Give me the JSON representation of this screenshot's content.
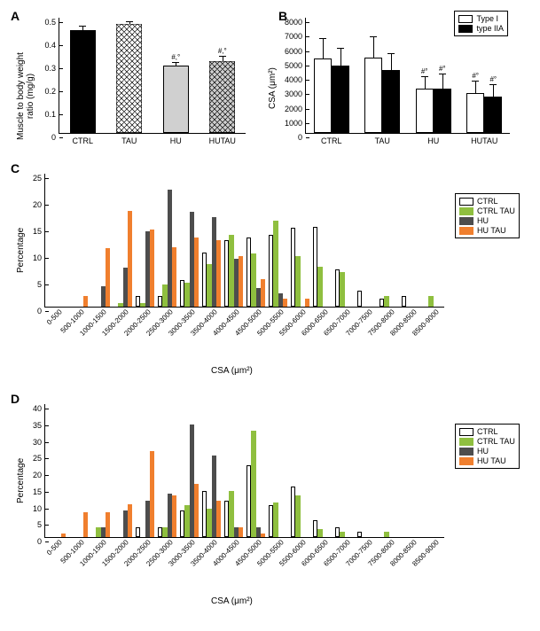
{
  "panelA": {
    "label": "A",
    "type": "bar",
    "ylabel": "Muscle to body weight\nratio (mg/g)",
    "ylim": [
      0,
      0.5
    ],
    "ytick_step": 0.1,
    "yticks": [
      "0",
      "0.1",
      "0.2",
      "0.3",
      "0.4",
      "0.5"
    ],
    "categories": [
      "CTRL",
      "TAU",
      "HU",
      "HUTAU"
    ],
    "values": [
      0.445,
      0.472,
      0.292,
      0.31
    ],
    "errors": [
      0.018,
      0.008,
      0.012,
      0.02
    ],
    "fills": [
      "#000000",
      "hatch-white",
      "#d0d0d0",
      "hatch-gray"
    ],
    "annotations": [
      "",
      "",
      "#,°",
      "#,°"
    ],
    "bar_width": 0.55,
    "label_fontsize": 10
  },
  "panelB": {
    "label": "B",
    "type": "grouped-bar",
    "ylabel": "CSA (μm²)",
    "ylim": [
      0,
      8000
    ],
    "ytick_step": 1000,
    "yticks": [
      "0",
      "1000",
      "2000",
      "3000",
      "4000",
      "5000",
      "6000",
      "7000",
      "8000"
    ],
    "categories": [
      "CTRL",
      "TAU",
      "HU",
      "HUTAU"
    ],
    "series": [
      {
        "name": "Type I",
        "fill": "#ffffff",
        "values": [
          5200,
          5250,
          3050,
          2800
        ],
        "errors": [
          1350,
          1400,
          850,
          800
        ],
        "annot": [
          "",
          "",
          "#°",
          "#°"
        ]
      },
      {
        "name": "type IIA",
        "fill": "#000000",
        "values": [
          4650,
          4400,
          3100,
          2500
        ],
        "errors": [
          1200,
          1100,
          950,
          800
        ],
        "annot": [
          "",
          "",
          "#°",
          "#°"
        ]
      }
    ],
    "bar_width": 0.35,
    "legend_pos": "top-right"
  },
  "hist_categories": [
    "0-500",
    "500-1000",
    "1000-1500",
    "1500-2000",
    "2000-2500",
    "2500-3000",
    "3000-3500",
    "3500-4000",
    "4000-4500",
    "4500-5000",
    "5000-5500",
    "5500-6000",
    "6000-6500",
    "6500-7000",
    "7000-7500",
    "7500-8000",
    "8000-8500",
    "8500-9000"
  ],
  "hist_series_meta": [
    {
      "name": "CTRL",
      "fill": "#ffffff",
      "border": "#000000"
    },
    {
      "name": "CTRL TAU",
      "fill": "#8fbf3f",
      "border": "#8fbf3f"
    },
    {
      "name": "HU",
      "fill": "#4d4d4d",
      "border": "#4d4d4d"
    },
    {
      "name": "HU TAU",
      "fill": "#f07f2e",
      "border": "#f07f2e"
    }
  ],
  "panelC": {
    "label": "C",
    "type": "grouped-bar-hist",
    "ylabel": "Percentage",
    "xlabel": "CSA (μm²)",
    "ylim": [
      0,
      25
    ],
    "ytick_step": 5,
    "yticks": [
      "0",
      "5",
      "10",
      "15",
      "20",
      "25"
    ],
    "series": [
      {
        "values": [
          0,
          0,
          0,
          0,
          2,
          2,
          5,
          10.2,
          12.5,
          13,
          13.5,
          14.8,
          15,
          7,
          3,
          1.5,
          2,
          0
        ]
      },
      {
        "values": [
          0,
          0,
          0,
          0.7,
          0.7,
          4.2,
          4.5,
          8,
          13.5,
          10,
          16.2,
          9.5,
          7.5,
          6.5,
          0,
          2,
          0,
          2
        ]
      },
      {
        "values": [
          0,
          0,
          3.8,
          7.3,
          14.2,
          22,
          17.8,
          16.8,
          9,
          3.5,
          2.5,
          0,
          0,
          0,
          0,
          0,
          0,
          0
        ]
      },
      {
        "values": [
          0,
          2,
          11,
          18,
          14.5,
          11.2,
          13,
          12.5,
          9.5,
          5.2,
          1.5,
          1.5,
          0,
          0,
          0,
          0,
          0,
          0
        ]
      }
    ]
  },
  "panelD": {
    "label": "D",
    "type": "grouped-bar-hist",
    "ylabel": "Percentage",
    "xlabel": "CSA (μm²)",
    "ylim": [
      0,
      40
    ],
    "ytick_step": 5,
    "yticks": [
      "0",
      "5",
      "10",
      "15",
      "20",
      "25",
      "30",
      "35",
      "40"
    ],
    "series": [
      {
        "values": [
          0,
          0,
          0,
          0,
          3,
          3,
          8,
          14,
          11,
          21.5,
          9.5,
          15.2,
          5,
          3,
          1.5,
          0,
          0,
          0
        ]
      },
      {
        "values": [
          0,
          0,
          3,
          0,
          0,
          3,
          9.5,
          8.5,
          13.8,
          32,
          10.5,
          12.5,
          2.5,
          1.5,
          0,
          1.5,
          0,
          0
        ]
      },
      {
        "values": [
          0,
          0,
          3,
          8,
          11,
          13,
          34,
          24.5,
          3,
          3,
          0,
          0,
          0,
          0,
          0,
          0,
          0,
          0
        ]
      },
      {
        "values": [
          1,
          7.5,
          7.5,
          10,
          26,
          12.5,
          16,
          11,
          3,
          1,
          0,
          0,
          0,
          0,
          0,
          0,
          0,
          0
        ]
      }
    ]
  },
  "colors": {
    "axis": "#000000",
    "background": "#ffffff"
  }
}
